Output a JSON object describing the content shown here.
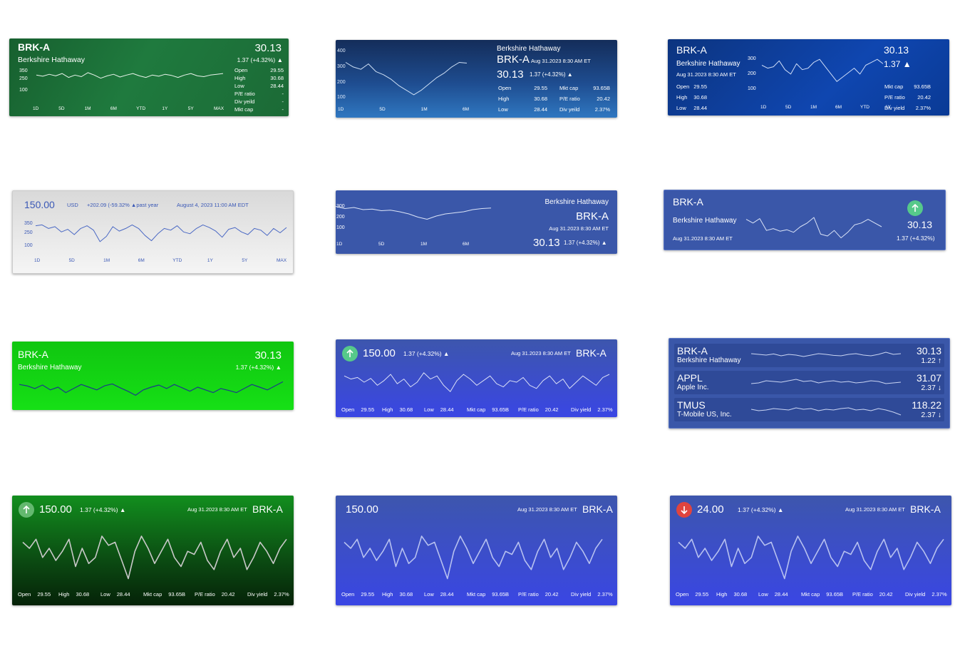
{
  "cards": [
    {
      "symbol": "BRK-A",
      "name": "Berkshire Hathaway",
      "price": 30.13,
      "change": "1.37 (+4.32%) ▲",
      "yticks": [
        350,
        250,
        100
      ],
      "ylim": [
        40,
        420
      ],
      "ranges": [
        "1D",
        "5D",
        "1M",
        "6M",
        "YTD",
        "1Y",
        "5Y",
        "MAX"
      ],
      "stats": [
        {
          "label": "Open",
          "value": 29.55
        },
        {
          "label": "High",
          "value": 30.68
        },
        {
          "label": "Low",
          "value": 28.44
        },
        {
          "label": "P/E ratio",
          "value": "-"
        },
        {
          "label": "Mkt cap",
          "value": "-"
        },
        {
          "label": "Div yeild",
          "value": "-"
        }
      ],
      "line": [
        300,
        285,
        310,
        290,
        320,
        270,
        300,
        280,
        330,
        300,
        260,
        290,
        310,
        275,
        300,
        320,
        290,
        270,
        300,
        285,
        310,
        295,
        270,
        300,
        320,
        290,
        280,
        300,
        310,
        320
      ]
    },
    {
      "name": "Berkshire Hathaway",
      "symbol": "BRK-A",
      "date": "Aug 31.2023 8:30 AM ET",
      "price": 30.13,
      "change": "1.37 (+4.32%) ▲",
      "yticks": [
        400,
        300,
        200,
        100
      ],
      "ylim": [
        50,
        420
      ],
      "ranges": [
        "1D",
        "5D",
        "1M",
        "6M"
      ],
      "stats": [
        {
          "label": "Open",
          "value": 29.55
        },
        {
          "label": "Mkt cap",
          "value": "93.65B"
        },
        {
          "label": "High",
          "value": 30.68
        },
        {
          "label": "P/E ratio",
          "value": 20.42
        },
        {
          "label": "Low",
          "value": 28.44
        },
        {
          "label": "Div yeild",
          "value": "2.37%"
        }
      ],
      "line": [
        330,
        300,
        285,
        320,
        270,
        250,
        220,
        180,
        150,
        120,
        150,
        190,
        230,
        260,
        300,
        330,
        325
      ]
    },
    {
      "symbol": "BRK-A",
      "name": "Berkshire Hathaway",
      "date": "Aug 31.2023 8:30 AM ET",
      "price": 30.13,
      "change": "1.37 ▲",
      "yticks": [
        300,
        200,
        100
      ],
      "ylim": [
        50,
        330
      ],
      "ranges": [
        "1D",
        "5D",
        "1M",
        "6M",
        "YTD",
        "1Y"
      ],
      "stats": [
        {
          "label": "Open",
          "value": 29.55
        },
        {
          "label": "High",
          "value": 30.68
        },
        {
          "label": "Low",
          "value": 28.44
        },
        {
          "label": "Mkt cap",
          "value": "93.65B"
        },
        {
          "label": "P/E ratio",
          "value": 20.42
        },
        {
          "label": "Div yield",
          "value": "2.37%"
        }
      ],
      "line": [
        260,
        240,
        250,
        290,
        230,
        200,
        270,
        230,
        240,
        280,
        300,
        250,
        200,
        150,
        180,
        210,
        240,
        200,
        260,
        280,
        300,
        270
      ]
    },
    {
      "price": "150.00",
      "currency": "USD",
      "change": "+202.09 (-59.32% ▲past year",
      "date": "August 4, 2023 11:00 AM EDT",
      "yticks": [
        350,
        250,
        100
      ],
      "ylim": [
        60,
        400
      ],
      "ranges": [
        "1D",
        "5D",
        "1M",
        "6M",
        "YTD",
        "1Y",
        "5Y",
        "MAX"
      ],
      "line": [
        330,
        340,
        300,
        320,
        260,
        290,
        230,
        300,
        330,
        280,
        150,
        210,
        320,
        270,
        300,
        340,
        300,
        220,
        160,
        240,
        300,
        280,
        330,
        260,
        240,
        300,
        340,
        310,
        270,
        200,
        290,
        310,
        260,
        230,
        300,
        280,
        220,
        300,
        250,
        310
      ]
    },
    {
      "name": "Berkshire Hathaway",
      "symbol": "BRK-A",
      "date": "Aug 31.2023 8:30 AM ET",
      "price": 30.13,
      "change": "1.37 (+4.32%) ▲",
      "yticks": [
        300,
        200,
        100
      ],
      "ylim": [
        50,
        330
      ],
      "ranges": [
        "1D",
        "5D",
        "1M",
        "6M"
      ],
      "line": [
        300,
        280,
        290,
        270,
        275,
        260,
        265,
        250,
        230,
        200,
        180,
        210,
        230,
        240,
        250,
        270,
        280,
        285
      ]
    },
    {
      "symbol": "BRK-A",
      "name": "Berkshire Hathaway",
      "date": "Aug 31.2023 8:30 AM ET",
      "price": 30.13,
      "change": "1.37 (+4.32%)",
      "ylim": [
        0,
        100
      ],
      "line": [
        70,
        60,
        72,
        40,
        45,
        38,
        42,
        35,
        50,
        60,
        75,
        30,
        25,
        40,
        20,
        35,
        55,
        60,
        70,
        60,
        50
      ]
    },
    {
      "symbol": "BRK-A",
      "name": "Berkshire Hathaway",
      "price": 30.13,
      "change": "1.37 (+4.32%) ▲",
      "ylim": [
        0,
        100
      ],
      "line": [
        60,
        55,
        45,
        58,
        40,
        50,
        30,
        45,
        60,
        50,
        40,
        55,
        62,
        48,
        35,
        20,
        40,
        50,
        58,
        45,
        60,
        48,
        35,
        50,
        40,
        30,
        45,
        38,
        30,
        45,
        60,
        50,
        40,
        55,
        70
      ]
    },
    {
      "price": "150.00",
      "change": "1.37 (+4.32%) ▲",
      "date": "Aug 31.2023 8:30 AM ET",
      "symbol": "BRK-A",
      "stats": [
        {
          "label": "Open",
          "value": 29.55
        },
        {
          "label": "High",
          "value": 30.68
        },
        {
          "label": "Low",
          "value": 28.44
        },
        {
          "label": "Mkt cap",
          "value": "93.65B"
        },
        {
          "label": "P/E ratio",
          "value": 20.42
        },
        {
          "label": "Div yield",
          "value": "2.37%"
        }
      ],
      "ylim": [
        0,
        100
      ],
      "line": [
        70,
        60,
        65,
        50,
        62,
        40,
        55,
        75,
        45,
        60,
        35,
        50,
        80,
        60,
        70,
        40,
        20,
        55,
        75,
        60,
        40,
        55,
        70,
        45,
        35,
        55,
        50,
        65,
        40,
        30,
        55,
        70,
        45,
        60,
        30,
        50,
        70,
        55,
        40,
        65,
        75
      ]
    },
    {
      "rows": [
        {
          "symbol": "BRK-A",
          "name": "Berkshire Hathaway",
          "price": 30.13,
          "change": "1.22 ↑",
          "ylim": [
            0,
            100
          ],
          "line": [
            60,
            55,
            50,
            58,
            45,
            55,
            50,
            40,
            50,
            60,
            55,
            48,
            45,
            55,
            60,
            50,
            45,
            55,
            70,
            55,
            60
          ]
        },
        {
          "symbol": "APPL",
          "name": "Apple Inc.",
          "price": 31.07,
          "change": "2.37 ↓",
          "ylim": [
            0,
            100
          ],
          "line": [
            40,
            45,
            60,
            55,
            50,
            60,
            70,
            55,
            60,
            45,
            55,
            60,
            50,
            55,
            45,
            50,
            60,
            55,
            40,
            45,
            50
          ]
        },
        {
          "symbol": "TMUS",
          "name": "T-Mobile US, Inc.",
          "price": 118.22,
          "change": "2.37 ↓",
          "ylim": [
            0,
            100
          ],
          "line": [
            50,
            40,
            45,
            55,
            50,
            45,
            60,
            50,
            55,
            40,
            50,
            45,
            55,
            60,
            45,
            50,
            40,
            55,
            45,
            30,
            10
          ]
        }
      ]
    },
    {
      "price": "150.00",
      "change": "1.37 (+4.32%) ▲",
      "date": "Aug 31.2023 8:30 AM ET",
      "symbol": "BRK-A",
      "stats": [
        {
          "label": "Open",
          "value": 29.55
        },
        {
          "label": "High",
          "value": 30.68
        },
        {
          "label": "Low",
          "value": 28.44
        },
        {
          "label": "Mkt cap",
          "value": "93.65B"
        },
        {
          "label": "P/E ratio",
          "value": 20.42
        },
        {
          "label": "Div yield",
          "value": "2.37%"
        }
      ],
      "ylim": [
        0,
        100
      ],
      "line": [
        70,
        60,
        75,
        45,
        60,
        40,
        55,
        75,
        30,
        60,
        35,
        45,
        80,
        65,
        70,
        40,
        10,
        55,
        80,
        60,
        35,
        55,
        75,
        45,
        30,
        55,
        50,
        70,
        40,
        25,
        55,
        75,
        45,
        60,
        25,
        45,
        70,
        55,
        35,
        60,
        75
      ]
    },
    {
      "price": "150.00",
      "date": "Aug 31.2023 8:30 AM ET",
      "symbol": "BRK-A",
      "stats": [
        {
          "label": "Open",
          "value": 29.55
        },
        {
          "label": "High",
          "value": 30.68
        },
        {
          "label": "Low",
          "value": 28.44
        },
        {
          "label": "Mkt cap",
          "value": "93.65B"
        },
        {
          "label": "P/E ratio",
          "value": 20.42
        },
        {
          "label": "Div yield",
          "value": "2.37%"
        }
      ],
      "ylim": [
        0,
        100
      ],
      "line": [
        70,
        60,
        75,
        45,
        60,
        40,
        55,
        75,
        30,
        60,
        35,
        45,
        80,
        65,
        70,
        40,
        10,
        55,
        80,
        60,
        35,
        55,
        75,
        45,
        30,
        55,
        50,
        70,
        40,
        25,
        55,
        75,
        45,
        60,
        25,
        45,
        70,
        55,
        35,
        60,
        75
      ]
    },
    {
      "price": "24.00",
      "change": "1.37 (+4.32%) ▲",
      "date": "Aug 31.2023 8:30 AM ET",
      "symbol": "BRK-A",
      "stats": [
        {
          "label": "Open",
          "value": 29.55
        },
        {
          "label": "High",
          "value": 30.68
        },
        {
          "label": "Low",
          "value": 28.44
        },
        {
          "label": "Mkt cap",
          "value": "93.65B"
        },
        {
          "label": "P/E ratio",
          "value": 20.42
        },
        {
          "label": "Div yield",
          "value": "2.37%"
        }
      ],
      "ylim": [
        0,
        100
      ],
      "line": [
        70,
        60,
        75,
        45,
        60,
        40,
        55,
        75,
        30,
        60,
        35,
        45,
        80,
        65,
        70,
        40,
        10,
        55,
        80,
        60,
        35,
        55,
        75,
        45,
        30,
        55,
        50,
        70,
        40,
        25,
        55,
        75,
        45,
        60,
        25,
        45,
        70,
        55,
        35,
        60,
        75
      ]
    }
  ]
}
